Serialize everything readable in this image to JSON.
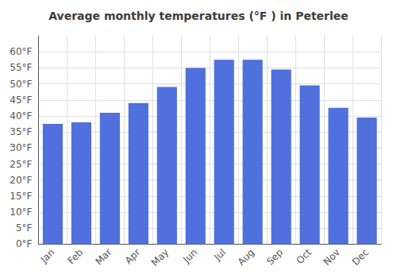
{
  "chart_data": {
    "type": "bar",
    "title": "Average monthly temperatures (°F ) in Peterlee",
    "categories": [
      "Jan",
      "Feb",
      "Mar",
      "Apr",
      "May",
      "Jun",
      "Jul",
      "Aug",
      "Sep",
      "Oct",
      "Nov",
      "Dec"
    ],
    "values": [
      37.5,
      38.0,
      41.0,
      44.0,
      49.0,
      55.0,
      57.5,
      57.5,
      54.5,
      49.5,
      42.5,
      39.5
    ],
    "ylim": [
      0,
      65
    ],
    "yticks": [
      {
        "value": 0,
        "label": "0°F"
      },
      {
        "value": 5,
        "label": "5°F"
      },
      {
        "value": 10,
        "label": "10°F"
      },
      {
        "value": 15,
        "label": "15°F"
      },
      {
        "value": 20,
        "label": "20°F"
      },
      {
        "value": 25,
        "label": "25°F"
      },
      {
        "value": 30,
        "label": "30°F"
      },
      {
        "value": 35,
        "label": "35°F"
      },
      {
        "value": 40,
        "label": "40°F"
      },
      {
        "value": 45,
        "label": "45°F"
      },
      {
        "value": 50,
        "label": "50°F"
      },
      {
        "value": 55,
        "label": "55°F"
      },
      {
        "value": 60,
        "label": "60°F"
      }
    ],
    "grid": true
  }
}
